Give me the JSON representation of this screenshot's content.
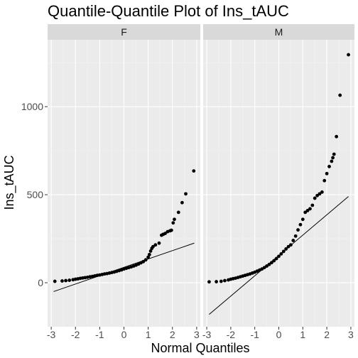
{
  "chart_data": {
    "type": "scatter",
    "title": "Quantile-Quantile Plot of Ins_tAUC",
    "xlabel": "Normal Quantiles",
    "ylabel": "Ins_tAUC",
    "xlim": [
      -3.15,
      3.15
    ],
    "ylim": [
      -250,
      1380
    ],
    "x_ticks": [
      -3,
      -2,
      -1,
      0,
      1,
      2,
      3
    ],
    "y_ticks": [
      0,
      500,
      1000
    ],
    "grid": true,
    "legend": "none",
    "panels": [
      {
        "label": "F",
        "points": [
          [
            -2.85,
            8
          ],
          [
            -2.55,
            10
          ],
          [
            -2.4,
            12
          ],
          [
            -2.25,
            14
          ],
          [
            -2.1,
            17
          ],
          [
            -2.0,
            20
          ],
          [
            -1.9,
            22
          ],
          [
            -1.8,
            25
          ],
          [
            -1.7,
            27
          ],
          [
            -1.6,
            29
          ],
          [
            -1.5,
            31
          ],
          [
            -1.4,
            34
          ],
          [
            -1.3,
            36
          ],
          [
            -1.2,
            39
          ],
          [
            -1.1,
            42
          ],
          [
            -1.0,
            44
          ],
          [
            -0.9,
            47
          ],
          [
            -0.8,
            50
          ],
          [
            -0.7,
            52
          ],
          [
            -0.6,
            55
          ],
          [
            -0.5,
            58
          ],
          [
            -0.4,
            61
          ],
          [
            -0.3,
            65
          ],
          [
            -0.2,
            69
          ],
          [
            -0.1,
            73
          ],
          [
            0.0,
            78
          ],
          [
            0.1,
            82
          ],
          [
            0.2,
            86
          ],
          [
            0.3,
            90
          ],
          [
            0.4,
            95
          ],
          [
            0.5,
            100
          ],
          [
            0.6,
            106
          ],
          [
            0.7,
            113
          ],
          [
            0.8,
            120
          ],
          [
            0.9,
            130
          ],
          [
            1.0,
            145
          ],
          [
            1.05,
            160
          ],
          [
            1.1,
            180
          ],
          [
            1.15,
            195
          ],
          [
            1.2,
            205
          ],
          [
            1.3,
            215
          ],
          [
            1.45,
            225
          ],
          [
            1.55,
            270
          ],
          [
            1.62,
            275
          ],
          [
            1.7,
            280
          ],
          [
            1.8,
            290
          ],
          [
            1.9,
            295
          ],
          [
            1.96,
            298
          ],
          [
            2.03,
            340
          ],
          [
            2.08,
            360
          ],
          [
            2.25,
            400
          ],
          [
            2.4,
            455
          ],
          [
            2.55,
            505
          ],
          [
            2.88,
            635
          ]
        ],
        "reference_line": {
          "x": [
            -2.9,
            2.9
          ],
          "y": [
            -50,
            225
          ]
        }
      },
      {
        "label": "M",
        "points": [
          [
            -2.9,
            5
          ],
          [
            -2.6,
            6
          ],
          [
            -2.4,
            8
          ],
          [
            -2.25,
            12
          ],
          [
            -2.1,
            16
          ],
          [
            -2.0,
            20
          ],
          [
            -1.9,
            23
          ],
          [
            -1.8,
            26
          ],
          [
            -1.7,
            30
          ],
          [
            -1.6,
            34
          ],
          [
            -1.5,
            38
          ],
          [
            -1.4,
            42
          ],
          [
            -1.3,
            46
          ],
          [
            -1.2,
            50
          ],
          [
            -1.1,
            55
          ],
          [
            -1.0,
            60
          ],
          [
            -0.9,
            66
          ],
          [
            -0.8,
            72
          ],
          [
            -0.7,
            78
          ],
          [
            -0.6,
            86
          ],
          [
            -0.5,
            95
          ],
          [
            -0.4,
            104
          ],
          [
            -0.3,
            114
          ],
          [
            -0.2,
            125
          ],
          [
            -0.1,
            137
          ],
          [
            0.0,
            150
          ],
          [
            0.1,
            164
          ],
          [
            0.2,
            178
          ],
          [
            0.3,
            192
          ],
          [
            0.4,
            205
          ],
          [
            0.5,
            215
          ],
          [
            0.6,
            240
          ],
          [
            0.7,
            265
          ],
          [
            0.8,
            300
          ],
          [
            0.9,
            330
          ],
          [
            1.0,
            360
          ],
          [
            1.1,
            400
          ],
          [
            1.2,
            410
          ],
          [
            1.3,
            420
          ],
          [
            1.4,
            440
          ],
          [
            1.5,
            480
          ],
          [
            1.6,
            495
          ],
          [
            1.7,
            505
          ],
          [
            1.8,
            515
          ],
          [
            1.9,
            580
          ],
          [
            2.0,
            620
          ],
          [
            2.1,
            660
          ],
          [
            2.2,
            690
          ],
          [
            2.25,
            710
          ],
          [
            2.3,
            730
          ],
          [
            2.4,
            830
          ],
          [
            2.55,
            1065
          ],
          [
            2.9,
            1295
          ]
        ],
        "reference_line": {
          "x": [
            -2.9,
            2.9
          ],
          "y": [
            -180,
            490
          ]
        }
      }
    ]
  }
}
